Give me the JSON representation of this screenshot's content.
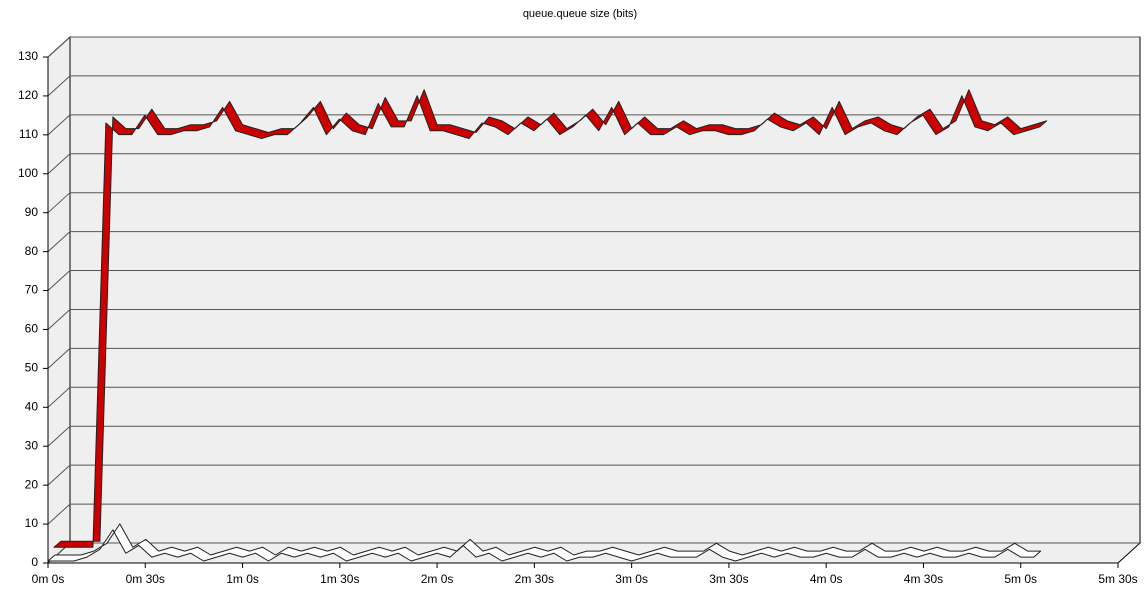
{
  "chart_data": {
    "type": "line3d",
    "title": "queue.queue size (bits)",
    "x": [
      0,
      4,
      8,
      12,
      16,
      20,
      24,
      28,
      32,
      36,
      40,
      44,
      48,
      52,
      56,
      60,
      64,
      68,
      72,
      76,
      80,
      84,
      88,
      92,
      96,
      100,
      104,
      108,
      112,
      116,
      120,
      124,
      128,
      132,
      136,
      140,
      144,
      148,
      152,
      156,
      160,
      164,
      168,
      172,
      176,
      180,
      184,
      188,
      192,
      196,
      200,
      204,
      208,
      212,
      216,
      220,
      224,
      228,
      232,
      236,
      240,
      244,
      248,
      252,
      256,
      260,
      264,
      268,
      272,
      276,
      280,
      284,
      288,
      292,
      296,
      300,
      304
    ],
    "series": [
      {
        "color": "#cc0000",
        "values": [
          2,
          2,
          2,
          2,
          111,
          108,
          108,
          113,
          108,
          108,
          109,
          109,
          110,
          115,
          109,
          108,
          107,
          108,
          108,
          111,
          115,
          108,
          112,
          109,
          108,
          116,
          110,
          110,
          118,
          109,
          109,
          108,
          107,
          111,
          110,
          108,
          111,
          109,
          112,
          108,
          110,
          113,
          109,
          115,
          108,
          111,
          108,
          108,
          110,
          108,
          109,
          109,
          108,
          108,
          109,
          112,
          110,
          109,
          111,
          108,
          115,
          108,
          110,
          111,
          109,
          108,
          111,
          113,
          108,
          110,
          118,
          110,
          109,
          111,
          108,
          109,
          110
        ]
      },
      {
        "color": "#ffffff",
        "values": [
          0,
          0,
          0,
          1,
          3,
          8,
          2,
          4,
          1,
          2,
          1,
          2,
          0,
          1,
          2,
          1,
          2,
          0,
          2,
          1,
          2,
          1,
          2,
          0,
          1,
          2,
          1,
          2,
          0,
          1,
          2,
          1,
          4,
          1,
          2,
          0,
          1,
          2,
          1,
          2,
          0,
          1,
          1,
          2,
          1,
          0,
          1,
          2,
          1,
          1,
          1,
          3,
          1,
          0,
          1,
          2,
          1,
          2,
          1,
          1,
          2,
          1,
          1,
          3,
          1,
          1,
          2,
          1,
          2,
          1,
          1,
          2,
          1,
          1,
          3,
          1,
          1
        ]
      }
    ],
    "xlim": [
      0,
      330
    ],
    "xticks": [
      {
        "value": 0,
        "label": "0m 0s"
      },
      {
        "value": 30,
        "label": "0m 30s"
      },
      {
        "value": 60,
        "label": "1m 0s"
      },
      {
        "value": 90,
        "label": "1m 30s"
      },
      {
        "value": 120,
        "label": "2m 0s"
      },
      {
        "value": 150,
        "label": "2m 30s"
      },
      {
        "value": 180,
        "label": "3m 0s"
      },
      {
        "value": 210,
        "label": "3m 30s"
      },
      {
        "value": 240,
        "label": "4m 0s"
      },
      {
        "value": 270,
        "label": "4m 30s"
      },
      {
        "value": 300,
        "label": "5m 0s"
      },
      {
        "value": 330,
        "label": "5m 30s"
      }
    ],
    "ylim": [
      0,
      130
    ],
    "yticks": [
      0,
      10,
      20,
      30,
      40,
      50,
      60,
      70,
      80,
      90,
      100,
      110,
      120,
      130
    ],
    "grid": true
  }
}
